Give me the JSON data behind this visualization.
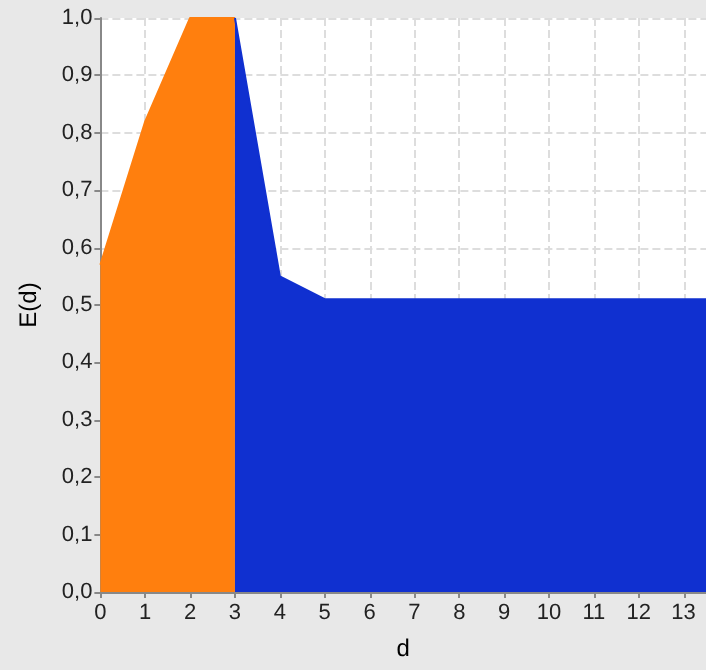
{
  "chart_data": {
    "type": "area",
    "xlabel": "d",
    "ylabel": "E(d)",
    "series": [
      {
        "color": "#ff7f0e",
        "x": [
          0,
          1,
          2,
          3
        ],
        "values": [
          0.57,
          0.82,
          1.0,
          1.0
        ]
      },
      {
        "color": "#1030d0",
        "x": [
          3,
          4,
          5,
          13.5
        ],
        "values": [
          1.0,
          0.55,
          0.51,
          0.51
        ]
      }
    ],
    "xlim": [
      0,
      13.5
    ],
    "xticks": [
      0,
      1,
      2,
      3,
      4,
      5,
      6,
      7,
      8,
      9,
      10,
      11,
      12,
      13
    ],
    "ylim": [
      0,
      1
    ],
    "yticks": [
      {
        "value": 0,
        "label": "0,0"
      },
      {
        "value": 0.1,
        "label": "0,1"
      },
      {
        "value": 0.2,
        "label": "0,2"
      },
      {
        "value": 0.3,
        "label": "0,3"
      },
      {
        "value": 0.4,
        "label": "0,4"
      },
      {
        "value": 0.5,
        "label": "0,5"
      },
      {
        "value": 0.6,
        "label": "0,6"
      },
      {
        "value": 0.7,
        "label": "0,7"
      },
      {
        "value": 0.8,
        "label": "0,8"
      },
      {
        "value": 0.9,
        "label": "0,9"
      },
      {
        "value": 1,
        "label": "1,0"
      }
    ],
    "grid": true,
    "line_style": "solid"
  }
}
